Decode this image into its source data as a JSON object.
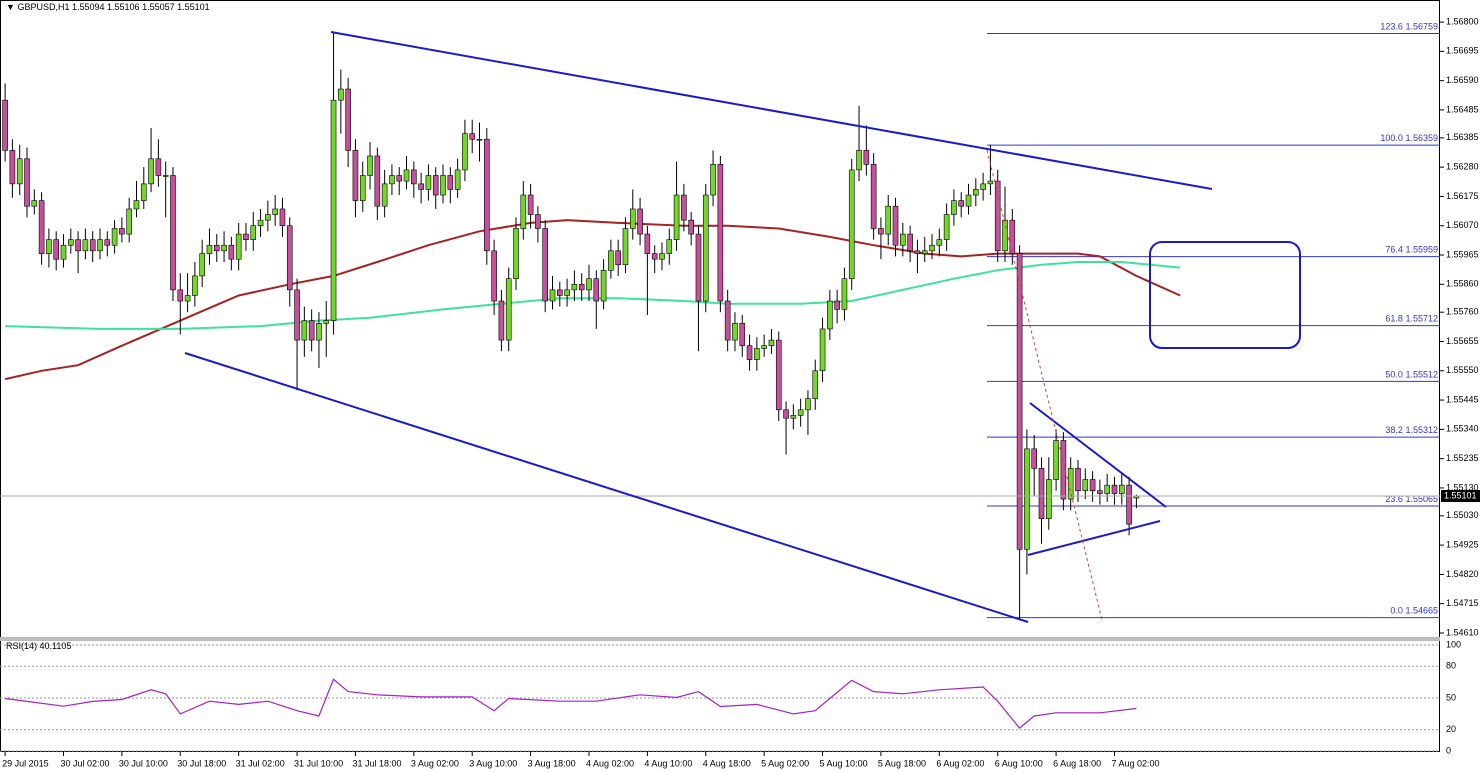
{
  "chart_data": {
    "type": "candlestick",
    "symbol": "GBPUSD,H1",
    "up_color": "#74d62a",
    "down_color": "#c4519a",
    "ylim": [
      1.54592,
      1.56872
    ],
    "yticks": [
      {
        "value": 1.568,
        "label": "1.56800"
      },
      {
        "value": 1.56695,
        "label": "1.56695"
      },
      {
        "value": 1.5659,
        "label": "1.56590"
      },
      {
        "value": 1.56485,
        "label": "1.56485"
      },
      {
        "value": 1.56385,
        "label": "1.56385"
      },
      {
        "value": 1.5628,
        "label": "1.56280"
      },
      {
        "value": 1.56175,
        "label": "1.56175"
      },
      {
        "value": 1.5607,
        "label": "1.56070"
      },
      {
        "value": 1.55965,
        "label": "1.55965"
      },
      {
        "value": 1.5586,
        "label": "1.55860"
      },
      {
        "value": 1.5576,
        "label": "1.55760"
      },
      {
        "value": 1.55655,
        "label": "1.55655"
      },
      {
        "value": 1.5555,
        "label": "1.55550"
      },
      {
        "value": 1.55445,
        "label": "1.55445"
      },
      {
        "value": 1.5534,
        "label": "1.55340"
      },
      {
        "value": 1.55235,
        "label": "1.55235"
      },
      {
        "value": 1.5513,
        "label": "1.55130"
      },
      {
        "value": 1.5503,
        "label": "1.55030"
      },
      {
        "value": 1.54925,
        "label": "1.54925"
      },
      {
        "value": 1.5482,
        "label": "1.54820"
      },
      {
        "value": 1.54715,
        "label": "1.54715"
      },
      {
        "value": 1.5461,
        "label": "1.54610"
      }
    ],
    "xlim": [
      -0.7,
      196.6
    ],
    "xticks": [
      {
        "value": 0,
        "label": "29 Jul 2015"
      },
      {
        "value": 8,
        "label": "30 Jul 02:00"
      },
      {
        "value": 16,
        "label": "30 Jul 10:00"
      },
      {
        "value": 24,
        "label": "30 Jul 18:00"
      },
      {
        "value": 32,
        "label": "31 Jul 02:00"
      },
      {
        "value": 40,
        "label": "31 Jul 10:00"
      },
      {
        "value": 48,
        "label": "31 Jul 18:00"
      },
      {
        "value": 56,
        "label": "3 Aug 02:00"
      },
      {
        "value": 64,
        "label": "3 Aug 10:00"
      },
      {
        "value": 72,
        "label": "3 Aug 18:00"
      },
      {
        "value": 80,
        "label": "4 Aug 02:00"
      },
      {
        "value": 88,
        "label": "4 Aug 10:00"
      },
      {
        "value": 96,
        "label": "4 Aug 18:00"
      },
      {
        "value": 104,
        "label": "5 Aug 02:00"
      },
      {
        "value": 112,
        "label": "5 Aug 10:00"
      },
      {
        "value": 120,
        "label": "5 Aug 18:00"
      },
      {
        "value": 128,
        "label": "6 Aug 02:00"
      },
      {
        "value": 136,
        "label": "6 Aug 10:00"
      },
      {
        "value": 144,
        "label": "6 Aug 18:00"
      },
      {
        "value": 152,
        "label": "7 Aug 02:00"
      }
    ],
    "ohlc": [
      [
        1.5652,
        1.5658,
        1.563,
        1.5634
      ],
      [
        1.5634,
        1.5638,
        1.5617,
        1.5622
      ],
      [
        1.5622,
        1.5636,
        1.5618,
        1.5631
      ],
      [
        1.5631,
        1.5635,
        1.561,
        1.5614
      ],
      [
        1.5614,
        1.562,
        1.5611,
        1.5616
      ],
      [
        1.5616,
        1.5619,
        1.5593,
        1.5597
      ],
      [
        1.5597,
        1.5606,
        1.5592,
        1.5602
      ],
      [
        1.5602,
        1.5605,
        1.5591,
        1.5595
      ],
      [
        1.5595,
        1.5604,
        1.5592,
        1.56
      ],
      [
        1.56,
        1.5606,
        1.5597,
        1.5602
      ],
      [
        1.5602,
        1.5605,
        1.559,
        1.5598
      ],
      [
        1.5598,
        1.5606,
        1.5595,
        1.5602
      ],
      [
        1.5602,
        1.5605,
        1.5594,
        1.5598
      ],
      [
        1.5598,
        1.5606,
        1.5595,
        1.5602
      ],
      [
        1.5602,
        1.5605,
        1.5596,
        1.56
      ],
      [
        1.56,
        1.5609,
        1.5597,
        1.5606
      ],
      [
        1.5606,
        1.561,
        1.5601,
        1.5604
      ],
      [
        1.5604,
        1.5617,
        1.5601,
        1.5613
      ],
      [
        1.5613,
        1.5623,
        1.561,
        1.5616
      ],
      [
        1.5616,
        1.5628,
        1.5613,
        1.5622
      ],
      [
        1.5622,
        1.5642,
        1.5619,
        1.5631
      ],
      [
        1.5631,
        1.5638,
        1.5621,
        1.5625
      ],
      [
        1.5625,
        1.563,
        1.561,
        1.5625
      ],
      [
        1.5625,
        1.5628,
        1.558,
        1.5584
      ],
      [
        1.5584,
        1.559,
        1.5568,
        1.558
      ],
      [
        1.558,
        1.559,
        1.5576,
        1.5582
      ],
      [
        1.5582,
        1.5594,
        1.5578,
        1.5589
      ],
      [
        1.5589,
        1.5602,
        1.5585,
        1.5597
      ],
      [
        1.5597,
        1.5606,
        1.5593,
        1.56
      ],
      [
        1.56,
        1.5604,
        1.5594,
        1.5598
      ],
      [
        1.5598,
        1.5605,
        1.5594,
        1.56
      ],
      [
        1.56,
        1.5603,
        1.5591,
        1.5595
      ],
      [
        1.5595,
        1.5608,
        1.5591,
        1.5604
      ],
      [
        1.5604,
        1.5608,
        1.5598,
        1.5602
      ],
      [
        1.5602,
        1.5612,
        1.5598,
        1.5607
      ],
      [
        1.5607,
        1.5613,
        1.5603,
        1.5609
      ],
      [
        1.5609,
        1.5616,
        1.5605,
        1.5611
      ],
      [
        1.5611,
        1.5618,
        1.5607,
        1.5613
      ],
      [
        1.5613,
        1.5617,
        1.5603,
        1.5607
      ],
      [
        1.5607,
        1.561,
        1.5578,
        1.5584
      ],
      [
        1.5584,
        1.5588,
        1.5548,
        1.5566
      ],
      [
        1.5566,
        1.5578,
        1.556,
        1.5573
      ],
      [
        1.5573,
        1.5577,
        1.5562,
        1.5566
      ],
      [
        1.5566,
        1.5576,
        1.5556,
        1.5572
      ],
      [
        1.5572,
        1.558,
        1.556,
        1.5573
      ],
      [
        1.5573,
        1.5676,
        1.5568,
        1.5652
      ],
      [
        1.5652,
        1.5663,
        1.564,
        1.5656
      ],
      [
        1.5656,
        1.566,
        1.5628,
        1.5634
      ],
      [
        1.5634,
        1.5638,
        1.561,
        1.5616
      ],
      [
        1.5616,
        1.563,
        1.5612,
        1.5625
      ],
      [
        1.5625,
        1.5637,
        1.562,
        1.5632
      ],
      [
        1.5632,
        1.5635,
        1.5609,
        1.5614
      ],
      [
        1.5614,
        1.5627,
        1.561,
        1.5622
      ],
      [
        1.5622,
        1.5629,
        1.5618,
        1.5625
      ],
      [
        1.5625,
        1.5628,
        1.5618,
        1.5623
      ],
      [
        1.5623,
        1.5632,
        1.562,
        1.5627
      ],
      [
        1.5627,
        1.563,
        1.5617,
        1.5622
      ],
      [
        1.5622,
        1.5626,
        1.5615,
        1.562
      ],
      [
        1.562,
        1.5629,
        1.5616,
        1.5625
      ],
      [
        1.5625,
        1.5628,
        1.5613,
        1.5618
      ],
      [
        1.5618,
        1.5629,
        1.5615,
        1.5625
      ],
      [
        1.5625,
        1.5628,
        1.5615,
        1.562
      ],
      [
        1.562,
        1.5631,
        1.5617,
        1.5627
      ],
      [
        1.5627,
        1.5645,
        1.5623,
        1.564
      ],
      [
        1.564,
        1.5645,
        1.5633,
        1.5638
      ],
      [
        1.5638,
        1.5644,
        1.563,
        1.5638
      ],
      [
        1.5638,
        1.5642,
        1.5593,
        1.5598
      ],
      [
        1.5598,
        1.5602,
        1.5575,
        1.558
      ],
      [
        1.558,
        1.5584,
        1.5562,
        1.5566
      ],
      [
        1.5566,
        1.5592,
        1.5562,
        1.5588
      ],
      [
        1.5588,
        1.561,
        1.5584,
        1.5606
      ],
      [
        1.5606,
        1.5623,
        1.5602,
        1.5618
      ],
      [
        1.5618,
        1.5622,
        1.5606,
        1.5611
      ],
      [
        1.5611,
        1.5614,
        1.5601,
        1.5606
      ],
      [
        1.5606,
        1.5609,
        1.5576,
        1.558
      ],
      [
        1.558,
        1.5589,
        1.5577,
        1.5584
      ],
      [
        1.5584,
        1.5587,
        1.5578,
        1.5582
      ],
      [
        1.5582,
        1.5588,
        1.5578,
        1.5584
      ],
      [
        1.5584,
        1.5591,
        1.558,
        1.5586
      ],
      [
        1.5586,
        1.559,
        1.558,
        1.5584
      ],
      [
        1.5584,
        1.5593,
        1.558,
        1.5588
      ],
      [
        1.5588,
        1.5591,
        1.557,
        1.558
      ],
      [
        1.558,
        1.5595,
        1.5577,
        1.5591
      ],
      [
        1.5591,
        1.5602,
        1.5588,
        1.5598
      ],
      [
        1.5598,
        1.5602,
        1.5589,
        1.5593
      ],
      [
        1.5593,
        1.561,
        1.559,
        1.5606
      ],
      [
        1.5606,
        1.562,
        1.5602,
        1.5613
      ],
      [
        1.5613,
        1.5617,
        1.56,
        1.5604
      ],
      [
        1.5604,
        1.5607,
        1.5575,
        1.5597
      ],
      [
        1.5597,
        1.56,
        1.559,
        1.5595
      ],
      [
        1.5595,
        1.5601,
        1.5591,
        1.5597
      ],
      [
        1.5597,
        1.5606,
        1.5593,
        1.5602
      ],
      [
        1.5602,
        1.563,
        1.5598,
        1.5618
      ],
      [
        1.5618,
        1.5622,
        1.5605,
        1.5609
      ],
      [
        1.5609,
        1.5612,
        1.56,
        1.5604
      ],
      [
        1.5604,
        1.5607,
        1.5562,
        1.558
      ],
      [
        1.558,
        1.5622,
        1.5576,
        1.5618
      ],
      [
        1.5618,
        1.5634,
        1.5614,
        1.5629
      ],
      [
        1.5629,
        1.5632,
        1.5576,
        1.558
      ],
      [
        1.558,
        1.5584,
        1.5562,
        1.5566
      ],
      [
        1.5566,
        1.5576,
        1.5562,
        1.5572
      ],
      [
        1.5572,
        1.5575,
        1.556,
        1.5564
      ],
      [
        1.5564,
        1.5568,
        1.5555,
        1.5559
      ],
      [
        1.5559,
        1.5567,
        1.5555,
        1.5563
      ],
      [
        1.5563,
        1.5568,
        1.556,
        1.5564
      ],
      [
        1.5564,
        1.557,
        1.5561,
        1.5566
      ],
      [
        1.5566,
        1.5569,
        1.5537,
        1.5541
      ],
      [
        1.5541,
        1.5544,
        1.5525,
        1.5538
      ],
      [
        1.5538,
        1.5543,
        1.5534,
        1.5539
      ],
      [
        1.5539,
        1.5545,
        1.5535,
        1.5541
      ],
      [
        1.5541,
        1.5548,
        1.5532,
        1.5545
      ],
      [
        1.5545,
        1.5559,
        1.5541,
        1.5555
      ],
      [
        1.5555,
        1.5574,
        1.5551,
        1.557
      ],
      [
        1.557,
        1.5584,
        1.5566,
        1.558
      ],
      [
        1.558,
        1.5584,
        1.5572,
        1.5577
      ],
      [
        1.5577,
        1.5592,
        1.5573,
        1.5588
      ],
      [
        1.5588,
        1.5631,
        1.5584,
        1.5627
      ],
      [
        1.5627,
        1.565,
        1.5623,
        1.5634
      ],
      [
        1.5634,
        1.5643,
        1.5625,
        1.5629
      ],
      [
        1.5629,
        1.5633,
        1.5602,
        1.5606
      ],
      [
        1.5606,
        1.561,
        1.5595,
        1.5604
      ],
      [
        1.5604,
        1.5618,
        1.56,
        1.5614
      ],
      [
        1.5614,
        1.5617,
        1.5596,
        1.56
      ],
      [
        1.56,
        1.5608,
        1.5596,
        1.5604
      ],
      [
        1.5604,
        1.5607,
        1.5594,
        1.5598
      ],
      [
        1.5598,
        1.5602,
        1.559,
        1.5597
      ],
      [
        1.5597,
        1.5603,
        1.5594,
        1.5598
      ],
      [
        1.5598,
        1.5604,
        1.5595,
        1.56
      ],
      [
        1.56,
        1.5606,
        1.5596,
        1.5602
      ],
      [
        1.5602,
        1.5615,
        1.5598,
        1.5611
      ],
      [
        1.5611,
        1.562,
        1.5607,
        1.5616
      ],
      [
        1.5616,
        1.5619,
        1.561,
        1.5614
      ],
      [
        1.5614,
        1.5622,
        1.5611,
        1.5618
      ],
      [
        1.5618,
        1.5624,
        1.5614,
        1.562
      ],
      [
        1.562,
        1.5626,
        1.5616,
        1.5622
      ],
      [
        1.5622,
        1.5636,
        1.5618,
        1.5623
      ],
      [
        1.5623,
        1.5627,
        1.5594,
        1.5598
      ],
      [
        1.5598,
        1.5621,
        1.5594,
        1.5609
      ],
      [
        1.5609,
        1.5613,
        1.5593,
        1.5597
      ],
      [
        1.5597,
        1.56,
        1.5466,
        1.5491
      ],
      [
        1.5491,
        1.5534,
        1.5482,
        1.5527
      ],
      [
        1.5527,
        1.5532,
        1.551,
        1.552
      ],
      [
        1.552,
        1.5524,
        1.5493,
        1.5502
      ],
      [
        1.5502,
        1.5524,
        1.5498,
        1.5516
      ],
      [
        1.5516,
        1.5534,
        1.5512,
        1.553
      ],
      [
        1.553,
        1.5533,
        1.5505,
        1.5509
      ],
      [
        1.5509,
        1.5524,
        1.5505,
        1.552
      ],
      [
        1.552,
        1.5523,
        1.5508,
        1.5512
      ],
      [
        1.5512,
        1.552,
        1.5509,
        1.5516
      ],
      [
        1.5516,
        1.5519,
        1.5508,
        1.5512
      ],
      [
        1.5512,
        1.5516,
        1.5507,
        1.5511
      ],
      [
        1.5511,
        1.5518,
        1.5508,
        1.5514
      ],
      [
        1.5514,
        1.5517,
        1.5507,
        1.5511
      ],
      [
        1.5511,
        1.5518,
        1.5507,
        1.5514
      ],
      [
        1.5514,
        1.5517,
        1.5496,
        1.55
      ],
      [
        1.55094,
        1.55106,
        1.55057,
        1.55101
      ]
    ],
    "moving_averages": [
      {
        "color": "#a32222",
        "x": [
          0,
          5,
          10,
          16,
          24,
          32,
          39,
          45,
          51,
          58,
          65,
          72,
          77,
          84,
          93,
          99,
          106,
          113,
          119,
          126,
          131,
          136,
          142,
          147,
          150,
          155,
          161
        ],
        "values": [
          1.5552,
          1.5555,
          1.5557,
          1.5564,
          1.5573,
          1.5582,
          1.5586,
          1.5589,
          1.5594,
          1.56,
          1.5605,
          1.5608,
          1.5609,
          1.5608,
          1.5607,
          1.5607,
          1.5606,
          1.5603,
          1.56,
          1.5597,
          1.5596,
          1.5597,
          1.5597,
          1.5597,
          1.5596,
          1.5589,
          1.5582
        ]
      },
      {
        "color": "#3ee29a",
        "x": [
          0,
          13,
          24,
          35,
          43,
          50,
          60,
          68,
          76,
          84,
          93,
          99,
          109,
          116,
          123,
          130,
          136,
          142,
          147,
          153,
          157,
          161
        ],
        "values": [
          1.5571,
          1.557,
          1.557,
          1.5571,
          1.5573,
          1.5574,
          1.5577,
          1.5579,
          1.5581,
          1.5581,
          1.558,
          1.5579,
          1.5579,
          1.558,
          1.5584,
          1.5588,
          1.5591,
          1.5593,
          1.5594,
          1.5594,
          1.5593,
          1.5592
        ]
      }
    ],
    "fibonacci_color": "#3434d0",
    "fibonacci": [
      {
        "level": "123.6",
        "price": 1.56759
      },
      {
        "level": "100.0",
        "price": 1.56359
      },
      {
        "level": "76.4",
        "price": 1.55959
      },
      {
        "level": "61.8",
        "price": 1.55712
      },
      {
        "level": "50.0",
        "price": 1.55512
      },
      {
        "level": "38.2",
        "price": 1.55312
      },
      {
        "level": "23.6",
        "price": 1.55065
      },
      {
        "level": "0.0",
        "price": 1.54665
      }
    ],
    "rsi": {
      "label": "RSI(14)",
      "color": "#a321c8",
      "ylim": [
        0,
        100
      ],
      "yticks": [
        100,
        80,
        50,
        20,
        0
      ],
      "x": [
        0,
        3,
        8,
        12,
        16,
        20,
        22,
        24,
        28,
        32,
        36,
        40,
        43,
        45,
        47,
        51,
        57,
        64,
        67,
        69,
        76,
        81,
        87,
        92,
        95,
        98,
        103,
        108,
        111,
        113,
        116,
        119,
        123,
        128,
        134,
        136,
        139,
        141,
        144,
        150,
        155
      ],
      "values": [
        49.5,
        46.8,
        42.3,
        46.8,
        48.6,
        57.7,
        54,
        35,
        47,
        44,
        47,
        38,
        33,
        67.6,
        56,
        53,
        51,
        51,
        38,
        49.5,
        47,
        47,
        53,
        50.5,
        56,
        42,
        44,
        35,
        38,
        49.5,
        66.7,
        56,
        54,
        57.7,
        60.4,
        47,
        21.6,
        33,
        36,
        36,
        40.1105
      ]
    }
  }
}
